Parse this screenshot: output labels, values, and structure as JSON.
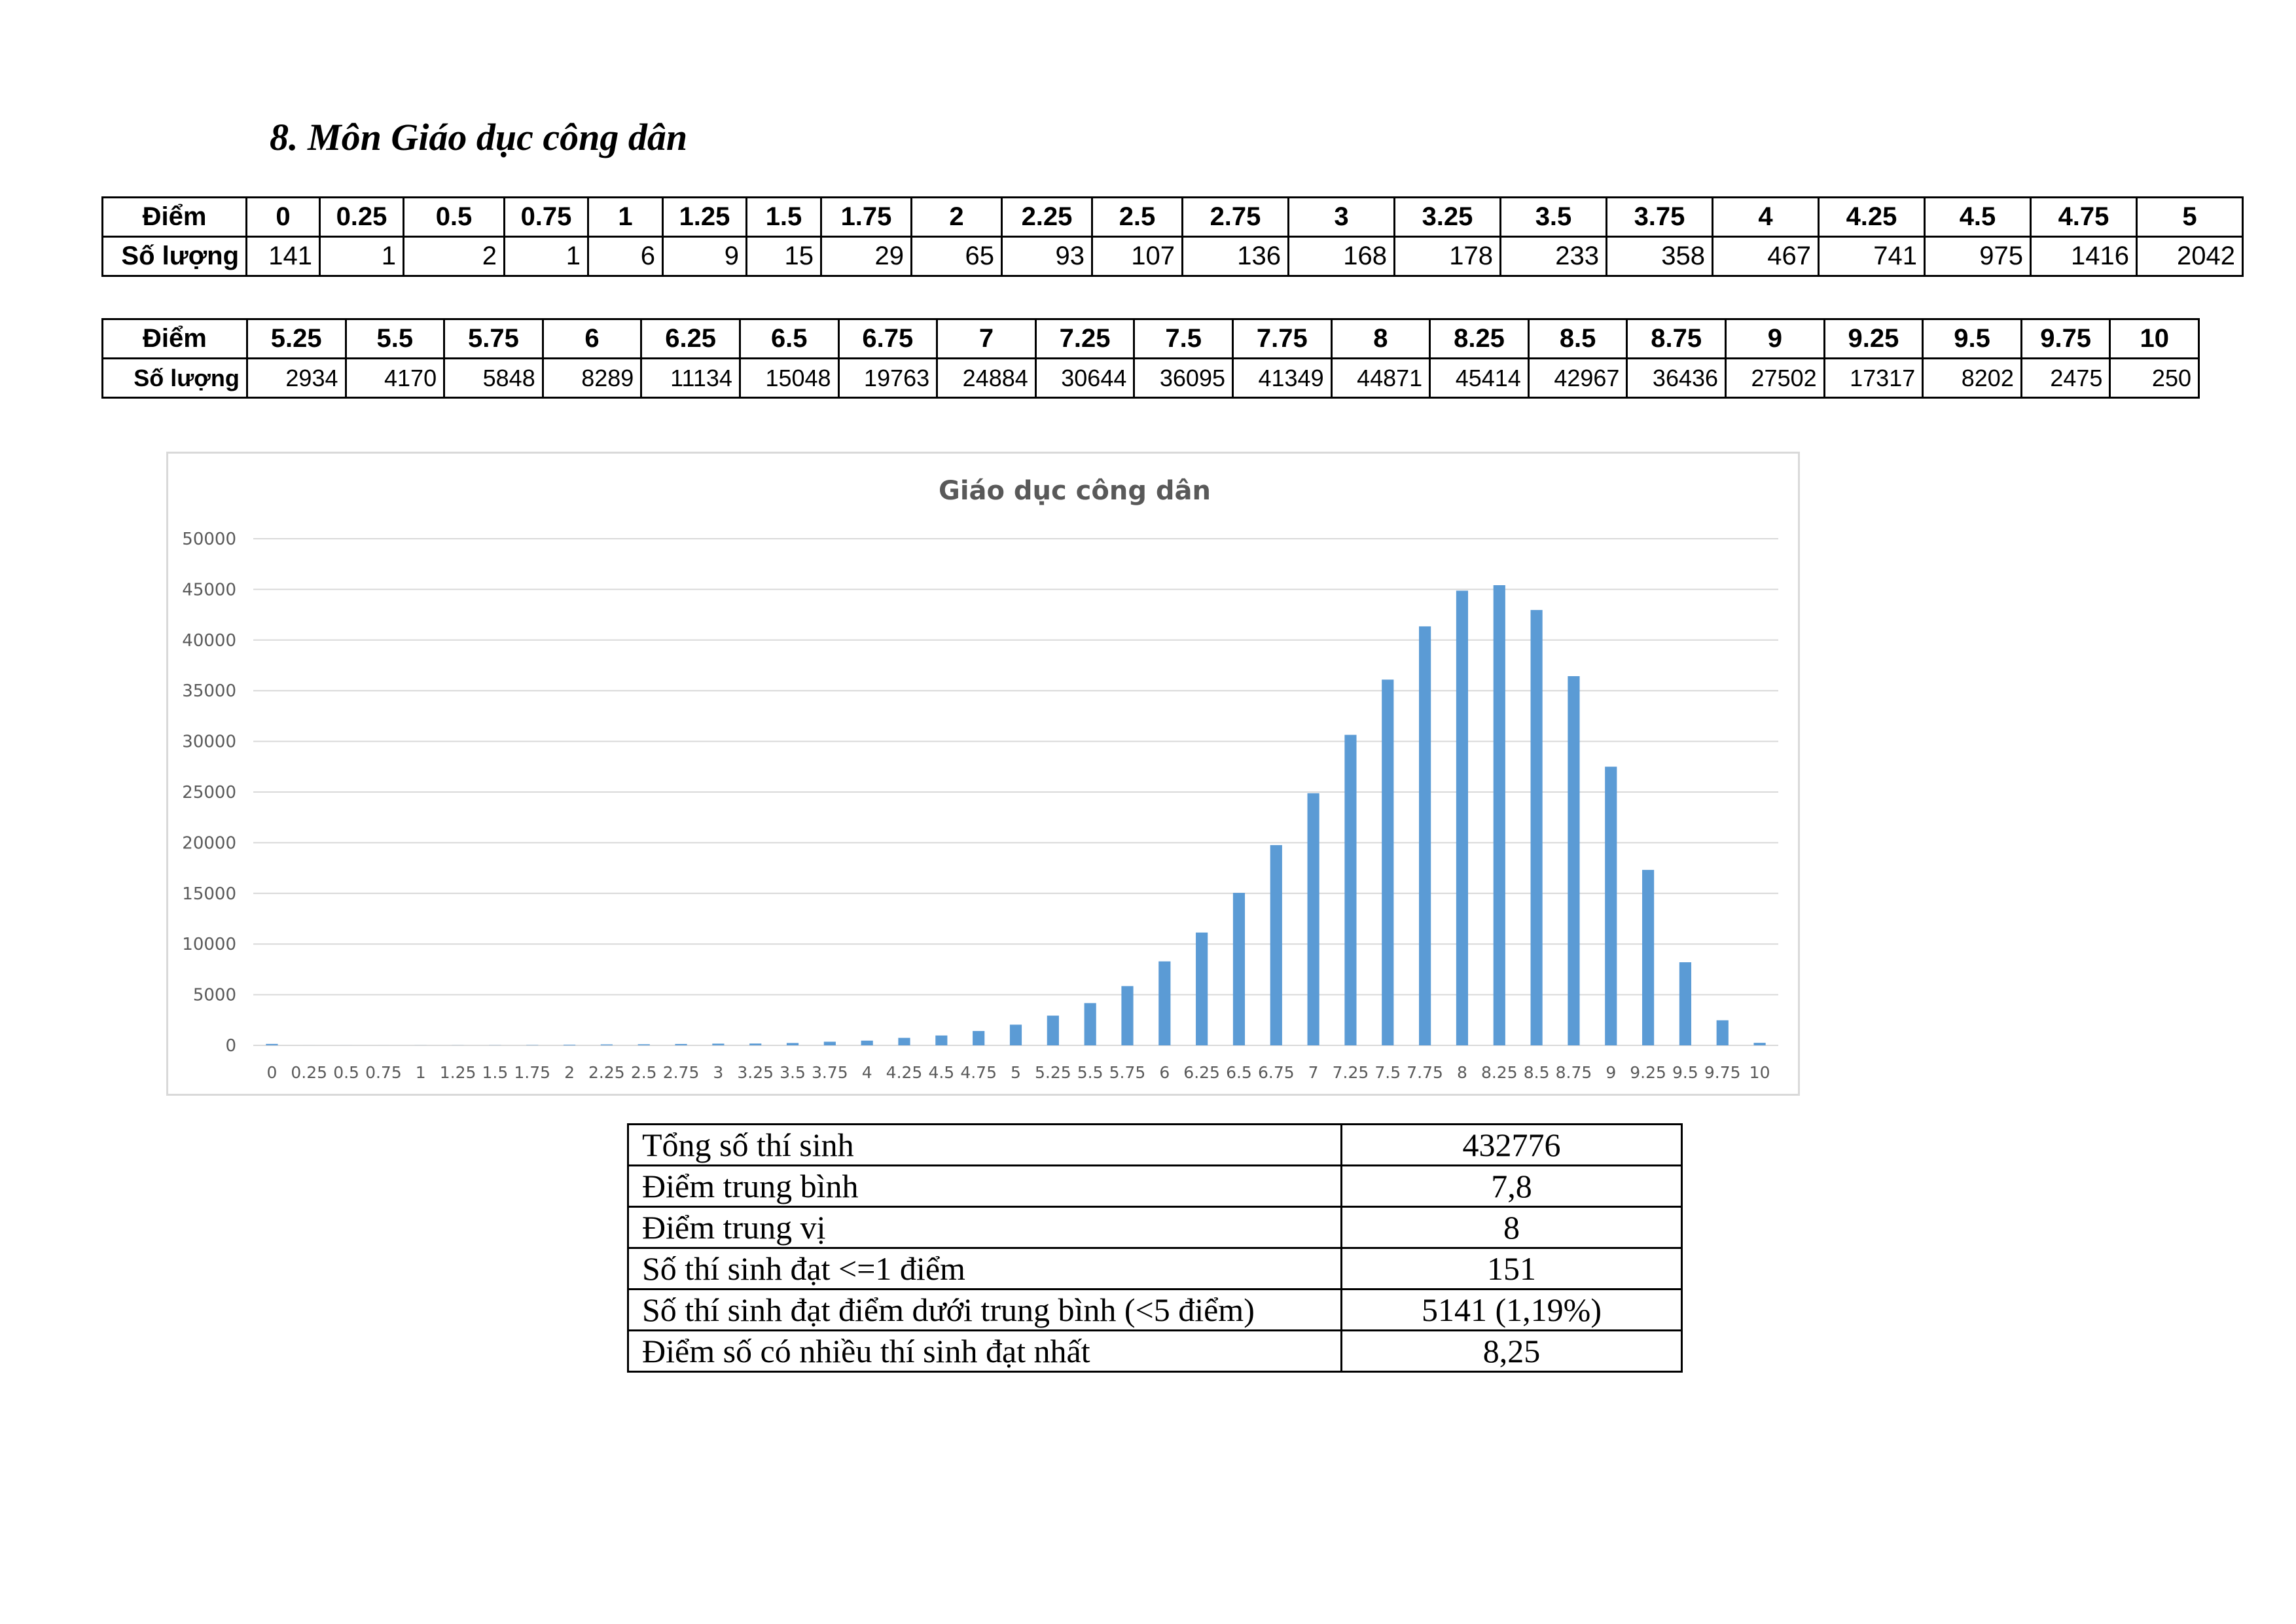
{
  "title": "8. Môn Giáo dục công dân",
  "table_label_score": "Điểm",
  "table_label_count": "Số lượng",
  "table1": {
    "scores": [
      "0",
      "0.25",
      "0.5",
      "0.75",
      "1",
      "1.25",
      "1.5",
      "1.75",
      "2",
      "2.25",
      "2.5",
      "2.75",
      "3",
      "3.25",
      "3.5",
      "3.75",
      "4",
      "4.25",
      "4.5",
      "4.75",
      "5"
    ],
    "counts": [
      "141",
      "1",
      "2",
      "1",
      "6",
      "9",
      "15",
      "29",
      "65",
      "93",
      "107",
      "136",
      "168",
      "178",
      "233",
      "358",
      "467",
      "741",
      "975",
      "1416",
      "2042"
    ]
  },
  "table2": {
    "scores": [
      "5.25",
      "5.5",
      "5.75",
      "6",
      "6.25",
      "6.5",
      "6.75",
      "7",
      "7.25",
      "7.5",
      "7.75",
      "8",
      "8.25",
      "8.5",
      "8.75",
      "9",
      "9.25",
      "9.5",
      "9.75",
      "10"
    ],
    "counts": [
      "2934",
      "4170",
      "5848",
      "8289",
      "11134",
      "15048",
      "19763",
      "24884",
      "30644",
      "36095",
      "41349",
      "44871",
      "45414",
      "42967",
      "36436",
      "27502",
      "17317",
      "8202",
      "2475",
      "250"
    ]
  },
  "chart_data": {
    "type": "bar",
    "title": "Giáo dục công dân",
    "xlabel": "",
    "ylabel": "",
    "ylim": [
      0,
      50000
    ],
    "yticks": [
      0,
      5000,
      10000,
      15000,
      20000,
      25000,
      30000,
      35000,
      40000,
      45000,
      50000
    ],
    "grid": true,
    "legend": "none",
    "bar_color": "#5b9bd5",
    "categories": [
      "0",
      "0.25",
      "0.5",
      "0.75",
      "1",
      "1.25",
      "1.5",
      "1.75",
      "2",
      "2.25",
      "2.5",
      "2.75",
      "3",
      "3.25",
      "3.5",
      "3.75",
      "4",
      "4.25",
      "4.5",
      "4.75",
      "5",
      "5.25",
      "5.5",
      "5.75",
      "6",
      "6.25",
      "6.5",
      "6.75",
      "7",
      "7.25",
      "7.5",
      "7.75",
      "8",
      "8.25",
      "8.5",
      "8.75",
      "9",
      "9.25",
      "9.5",
      "9.75",
      "10"
    ],
    "values": [
      141,
      1,
      2,
      1,
      6,
      9,
      15,
      29,
      65,
      93,
      107,
      136,
      168,
      178,
      233,
      358,
      467,
      741,
      975,
      1416,
      2042,
      2934,
      4170,
      5848,
      8289,
      11134,
      15048,
      19763,
      24884,
      30644,
      36095,
      41349,
      44871,
      45414,
      42967,
      36436,
      27502,
      17317,
      8202,
      2475,
      250
    ]
  },
  "summary": [
    {
      "label": "Tổng số thí sinh",
      "value": "432776"
    },
    {
      "label": "Điểm trung bình",
      "value": "7,8"
    },
    {
      "label": "Điểm trung vị",
      "value": "8"
    },
    {
      "label": "Số thí sinh đạt <=1 điểm",
      "value": "151"
    },
    {
      "label": "Số thí sinh đạt điểm dưới trung bình (<5 điểm)",
      "value": "5141 (1,19%)"
    },
    {
      "label": "Điểm số có nhiều thí sinh đạt nhất",
      "value": "8,25"
    }
  ]
}
